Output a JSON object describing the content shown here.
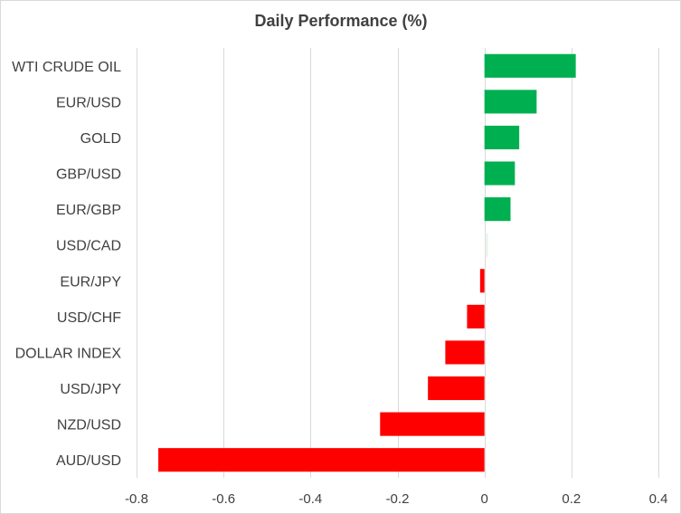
{
  "chart_data": {
    "type": "bar",
    "orientation": "horizontal",
    "title": "Daily Performance  (%)",
    "xlabel": "",
    "ylabel": "",
    "grid": true,
    "legend": "none",
    "xlim": [
      -0.8,
      0.4
    ],
    "ticks": [
      -0.8,
      -0.6,
      -0.4,
      -0.2,
      0,
      0.2,
      0.4
    ],
    "tick_labels": [
      "-0.8",
      "-0.6",
      "-0.4",
      "-0.2",
      "0",
      "0.2",
      "0.4"
    ],
    "categories": [
      "WTI CRUDE OIL",
      "EUR/USD",
      "GOLD",
      "GBP/USD",
      "EUR/GBP",
      "USD/CAD",
      "EUR/JPY",
      "USD/CHF",
      "DOLLAR INDEX",
      "USD/JPY",
      "NZD/USD",
      "AUD/USD"
    ],
    "values": [
      0.21,
      0.12,
      0.08,
      0.07,
      0.06,
      0.005,
      -0.01,
      -0.04,
      -0.09,
      -0.13,
      -0.24,
      -0.75
    ],
    "colors": {
      "positive": "#00b050",
      "negative": "#ff0000",
      "neutral": "#e8f5ec"
    }
  }
}
